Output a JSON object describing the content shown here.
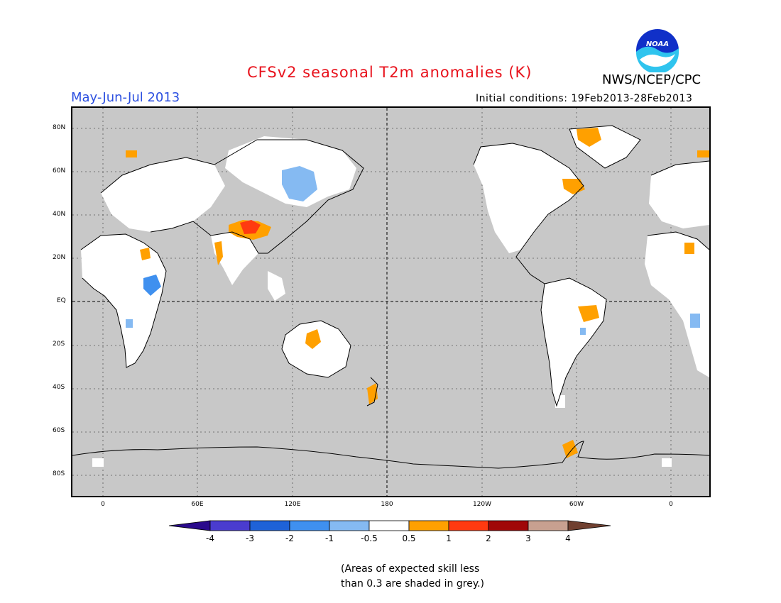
{
  "header": {
    "title": "CFSv2 seasonal T2m anomalies (K)",
    "period": "May-Jun-Jul 2013",
    "initial_conditions": "Initial conditions: 19Feb2013-28Feb2013",
    "agency": "NWS/NCEP/CPC",
    "logo_text": "NOAA"
  },
  "map": {
    "projection": "cylindrical equidistant, centered 180",
    "background_color": "#c8c8c8",
    "lat_ticks": [
      "80N",
      "60N",
      "40N",
      "20N",
      "EQ",
      "20S",
      "40S",
      "60S",
      "80S"
    ],
    "lon_ticks": [
      "0",
      "60E",
      "120E",
      "180",
      "120W",
      "60W",
      "0"
    ],
    "lon_range_deg": [
      -20,
      382
    ],
    "lat_range_deg": [
      -90,
      90
    ]
  },
  "colorbar": {
    "labels": [
      "-4",
      "-3",
      "-2",
      "-1",
      "-0.5",
      "0.5",
      "1",
      "2",
      "3",
      "4"
    ],
    "colors": [
      "#2a0a8c",
      "#4a3ccf",
      "#1e62d8",
      "#3f90ef",
      "#85baf2",
      "#ffffff",
      "#ffa000",
      "#ff3a10",
      "#a00808",
      "#c8a090",
      "#704030"
    ]
  },
  "footnote": {
    "line1": "(Areas of expected skill less",
    "line2": "than 0.3 are shaded in grey.)"
  }
}
